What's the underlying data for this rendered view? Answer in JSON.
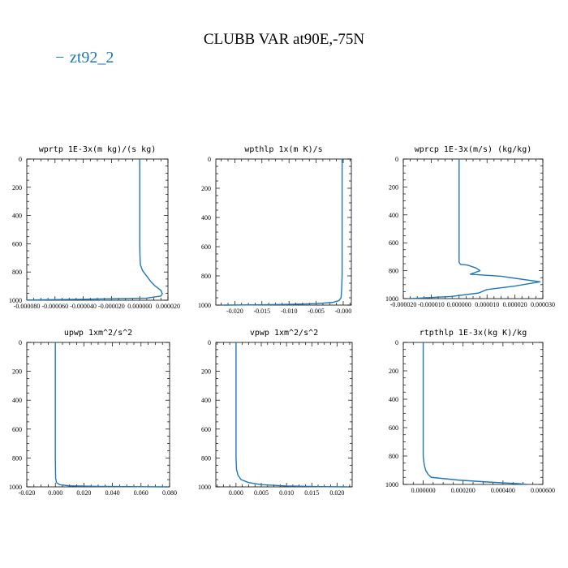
{
  "figure": {
    "title": "CLUBB VAR at90E,-75N",
    "legend": "zt92_2",
    "legend_marker": "−",
    "line_color": "#1f77b4"
  },
  "chart_data": [
    {
      "type": "line",
      "title": "wprtp  1E-3x(m kg)/(s kg)",
      "xlim": [
        -8e-05,
        2e-05
      ],
      "ylim": [
        1000,
        0
      ],
      "xticks": [
        -8e-05,
        -6e-05,
        -4e-05,
        -2e-05,
        0.0,
        2e-05
      ],
      "xticklabels": [
        "-0.000080",
        "-0.000060",
        "-0.000040",
        "-0.000020",
        "0.000000",
        "0.000020"
      ],
      "yticks": [
        0,
        200,
        400,
        600,
        800,
        1000
      ],
      "yticklabels": [
        "0",
        "200",
        "400",
        "600",
        "800",
        "1000"
      ],
      "series": [
        {
          "x": [
            0.0,
            0.0,
            0.0,
            0.0,
            0.0,
            2e-07,
            5e-07,
            2e-06,
            5e-06,
            8e-06,
            1.1e-05,
            1.5e-05,
            1.6e-05,
            1.5e-05,
            5e-06,
            -4e-05,
            -8e-05
          ],
          "y": [
            0,
            200,
            400,
            500,
            600,
            700,
            750,
            790,
            830,
            870,
            900,
            930,
            955,
            970,
            985,
            993,
            998
          ]
        }
      ]
    },
    {
      "type": "line",
      "title": "wpthlp  1x(m K)/s",
      "xlim": [
        -0.0235,
        0.0015
      ],
      "ylim": [
        1000,
        0
      ],
      "xticks": [
        -0.02,
        -0.015,
        -0.01,
        -0.005,
        0.0
      ],
      "xticklabels": [
        "-0.020",
        "-0.015",
        "-0.010",
        "-0.005",
        "-0.000"
      ],
      "yticks": [
        0,
        200,
        400,
        600,
        800,
        1000
      ],
      "yticklabels": [
        "0",
        "200",
        "400",
        "600",
        "800",
        "1000"
      ],
      "series": [
        {
          "x": [
            -0.0002,
            -0.0002,
            -0.0002,
            -0.0002,
            -0.0002,
            -0.0003,
            -0.0004,
            -0.0008,
            -0.002,
            -0.005,
            -0.01,
            -0.016,
            -0.022
          ],
          "y": [
            0,
            200,
            400,
            600,
            800,
            900,
            950,
            970,
            982,
            990,
            995,
            998,
            1000
          ]
        }
      ]
    },
    {
      "type": "line",
      "title": "wprcp  1E-3x(m/s) (kg/kg)",
      "xlim": [
        -2e-05,
        3e-05
      ],
      "ylim": [
        1000,
        0
      ],
      "xticks": [
        -2e-05,
        -1e-05,
        0.0,
        1e-05,
        2e-05,
        3e-05
      ],
      "xticklabels": [
        "-0.000020",
        "-0.000010",
        "0.000000",
        "0.000010",
        "0.000020",
        "0.000030"
      ],
      "yticks": [
        0,
        200,
        400,
        600,
        800,
        1000
      ],
      "yticklabels": [
        "0",
        "200",
        "400",
        "600",
        "800",
        "1000"
      ],
      "series": [
        {
          "x": [
            0.0,
            0.0,
            0.0,
            0.0,
            0.0,
            0.0,
            5e-07,
            3e-06,
            6e-06,
            7.5e-06,
            4e-06,
            1.5e-05,
            2.9e-05,
            2e-05,
            1e-05,
            7e-06,
            -3e-06,
            -1.8e-05
          ],
          "y": [
            0,
            200,
            400,
            600,
            700,
            740,
            755,
            760,
            780,
            800,
            825,
            840,
            880,
            910,
            935,
            960,
            985,
            1000
          ]
        }
      ]
    },
    {
      "type": "line",
      "title": "upwp  1xm^2/s^2",
      "xlim": [
        -0.02,
        0.08
      ],
      "ylim": [
        1000,
        0
      ],
      "xticks": [
        -0.02,
        0.0,
        0.02,
        0.04,
        0.06,
        0.08
      ],
      "xticklabels": [
        "-0.020",
        "0.000",
        "0.020",
        "0.040",
        "0.060",
        "0.080"
      ],
      "yticks": [
        0,
        200,
        400,
        600,
        800,
        1000
      ],
      "yticklabels": [
        "0",
        "200",
        "400",
        "600",
        "800",
        "1000"
      ],
      "series": [
        {
          "x": [
            0.0,
            0.0,
            0.0,
            0.0,
            0.0,
            0.0002,
            0.0008,
            0.003,
            0.01,
            0.03,
            0.06,
            0.078
          ],
          "y": [
            0,
            200,
            400,
            600,
            800,
            940,
            970,
            985,
            993,
            997,
            999,
            1000
          ]
        }
      ]
    },
    {
      "type": "line",
      "title": "vpwp  1xm^2/s^2",
      "xlim": [
        -0.004,
        0.023
      ],
      "ylim": [
        1000,
        0
      ],
      "xticks": [
        0.0,
        0.005,
        0.01,
        0.015,
        0.02
      ],
      "xticklabels": [
        "0.000",
        "0.005",
        "0.010",
        "0.015",
        "0.020"
      ],
      "yticks": [
        0,
        200,
        400,
        600,
        800,
        1000
      ],
      "yticklabels": [
        "0",
        "200",
        "400",
        "600",
        "800",
        "1000"
      ],
      "series": [
        {
          "x": [
            0.0,
            0.0,
            0.0,
            0.0,
            0.0,
            0.0001,
            0.0004,
            0.001,
            0.0025,
            0.005,
            0.01,
            0.016,
            0.022
          ],
          "y": [
            0,
            200,
            400,
            600,
            800,
            880,
            920,
            950,
            970,
            985,
            994,
            998,
            1000
          ]
        }
      ]
    },
    {
      "type": "line",
      "title": "rtpthlp  1E-3x(kg K)/kg",
      "xlim": [
        -0.0001,
        0.0006
      ],
      "ylim": [
        1000,
        0
      ],
      "xticks": [
        0.0,
        0.0002,
        0.0004,
        0.0006
      ],
      "xticklabels": [
        "0.000000",
        "0.000200",
        "0.000400",
        "0.000600"
      ],
      "yticks": [
        0,
        200,
        400,
        600,
        800,
        1000
      ],
      "yticklabels": [
        "0",
        "200",
        "400",
        "600",
        "800",
        "1000"
      ],
      "series": [
        {
          "x": [
            0.0,
            0.0,
            0.0,
            0.0,
            0.0,
            5e-06,
            1.2e-05,
            2.5e-05,
            4e-05,
            0.00018,
            0.00035,
            0.00048,
            0.00052
          ],
          "y": [
            0,
            200,
            400,
            600,
            800,
            860,
            900,
            930,
            950,
            970,
            985,
            995,
            1000
          ]
        }
      ]
    }
  ]
}
